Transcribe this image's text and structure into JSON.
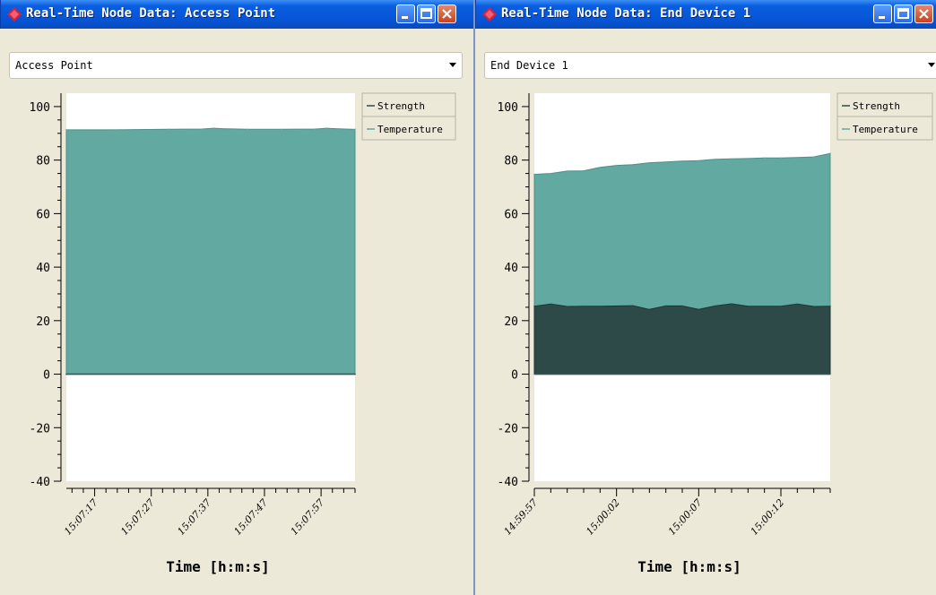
{
  "windows": [
    {
      "title": "Real-Time Node Data: Access Point",
      "selector": {
        "selected": "Access Point"
      },
      "chart_data": {
        "type": "area",
        "xlabel": "Time [h:m:s]",
        "ylim": [
          -40,
          105
        ],
        "yticks": [
          -40,
          -20,
          0,
          20,
          40,
          60,
          80,
          100
        ],
        "xlim": [
          "15:07:12",
          "15:08:03"
        ],
        "xticks": [
          "15:07:17",
          "15:07:27",
          "15:07:37",
          "15:07:47",
          "15:07:57"
        ],
        "legend": [
          "Strength",
          "Temperature"
        ],
        "legend_position": "right",
        "series": [
          {
            "name": "Strength",
            "color": "#2e4a48",
            "x": [
              "15:07:12",
              "15:08:03"
            ],
            "values": [
              0,
              0
            ]
          },
          {
            "name": "Temperature",
            "color": "#62a9a2",
            "x": [
              "15:07:12",
              "15:07:20",
              "15:07:30",
              "15:07:36",
              "15:07:38",
              "15:07:40",
              "15:07:44",
              "15:07:50",
              "15:07:56",
              "15:07:58",
              "15:08:00",
              "15:08:03"
            ],
            "values": [
              91.3,
              91.3,
              91.5,
              91.6,
              91.9,
              91.7,
              91.5,
              91.5,
              91.6,
              91.9,
              91.7,
              91.5
            ]
          }
        ]
      }
    },
    {
      "title": "Real-Time Node Data: End Device 1",
      "selector": {
        "selected": "End Device 1"
      },
      "chart_data": {
        "type": "area",
        "xlabel": "Time [h:m:s]",
        "ylim": [
          -40,
          105
        ],
        "yticks": [
          -40,
          -20,
          0,
          20,
          40,
          60,
          80,
          100
        ],
        "xlim": [
          "14:59:57",
          "15:00:15"
        ],
        "xticks": [
          "14:59:57",
          "15:00:02",
          "15:00:07",
          "15:00:12"
        ],
        "legend": [
          "Strength",
          "Temperature"
        ],
        "legend_position": "right",
        "series": [
          {
            "name": "Strength",
            "color": "#2e4a48",
            "x": [
              "14:59:57",
              "14:59:58",
              "14:59:59",
              "15:00:00",
              "15:00:01",
              "15:00:03",
              "15:00:04",
              "15:00:05",
              "15:00:06",
              "15:00:07",
              "15:00:08",
              "15:00:09",
              "15:00:10",
              "15:00:11",
              "15:00:12",
              "15:00:13",
              "15:00:14",
              "15:00:15"
            ],
            "values": [
              25.4,
              26.2,
              25.3,
              25.4,
              25.4,
              25.6,
              24.2,
              25.5,
              25.5,
              24.2,
              25.5,
              26.3,
              25.4,
              25.4,
              25.4,
              26.2,
              25.3,
              25.4
            ]
          },
          {
            "name": "Temperature",
            "color": "#62a9a2",
            "x": [
              "14:59:57",
              "14:59:58",
              "14:59:59",
              "15:00:00",
              "15:00:01",
              "15:00:02",
              "15:00:03",
              "15:00:04",
              "15:00:05",
              "15:00:06",
              "15:00:07",
              "15:00:08",
              "15:00:09",
              "15:00:10",
              "15:00:11",
              "15:00:12",
              "15:00:13",
              "15:00:14",
              "15:00:15"
            ],
            "values": [
              74.7,
              75.0,
              75.9,
              76.0,
              77.3,
              78.0,
              78.3,
              79.0,
              79.3,
              79.6,
              79.8,
              80.3,
              80.5,
              80.6,
              80.8,
              80.8,
              81.0,
              81.2,
              82.5
            ]
          }
        ]
      }
    }
  ]
}
